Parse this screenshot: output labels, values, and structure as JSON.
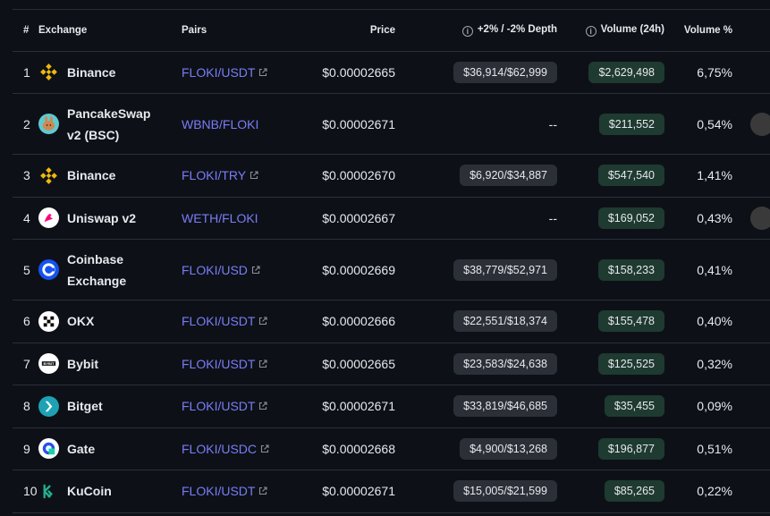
{
  "headers": {
    "num": "#",
    "exchange": "Exchange",
    "pairs": "Pairs",
    "price": "Price",
    "depth": "+2% / -2% Depth",
    "volume": "Volume (24h)",
    "volume_pct": "Volume %"
  },
  "rows": [
    {
      "num": "1",
      "exchange": "Binance",
      "pair": "FLOKI/USDT",
      "price": "$0.00002665",
      "depth": "$36,914/$62,999",
      "volume": "$2,629,498",
      "volume_pct": "6,75%",
      "logo": "binance-logo-icon"
    },
    {
      "num": "2",
      "exchange": "PancakeSwap v2 (BSC)",
      "pair": "WBNB/FLOKI",
      "price": "$0.00002671",
      "depth": "--",
      "volume": "$211,552",
      "volume_pct": "0,54%",
      "logo": "pancakeswap-logo-icon"
    },
    {
      "num": "3",
      "exchange": "Binance",
      "pair": "FLOKI/TRY",
      "price": "$0.00002670",
      "depth": "$6,920/$34,887",
      "volume": "$547,540",
      "volume_pct": "1,41%",
      "logo": "binance-logo-icon"
    },
    {
      "num": "4",
      "exchange": "Uniswap v2",
      "pair": "WETH/FLOKI",
      "price": "$0.00002667",
      "depth": "--",
      "volume": "$169,052",
      "volume_pct": "0,43%",
      "logo": "uniswap-logo-icon"
    },
    {
      "num": "5",
      "exchange": "Coinbase Exchange",
      "pair": "FLOKI/USD",
      "price": "$0.00002669",
      "depth": "$38,779/$52,971",
      "volume": "$158,233",
      "volume_pct": "0,41%",
      "logo": "coinbase-logo-icon"
    },
    {
      "num": "6",
      "exchange": "OKX",
      "pair": "FLOKI/USDT",
      "price": "$0.00002666",
      "depth": "$22,551/$18,374",
      "volume": "$155,478",
      "volume_pct": "0,40%",
      "logo": "okx-logo-icon"
    },
    {
      "num": "7",
      "exchange": "Bybit",
      "pair": "FLOKI/USDT",
      "price": "$0.00002665",
      "depth": "$23,583/$24,638",
      "volume": "$125,525",
      "volume_pct": "0,32%",
      "logo": "bybit-logo-icon"
    },
    {
      "num": "8",
      "exchange": "Bitget",
      "pair": "FLOKI/USDT",
      "price": "$0.00002671",
      "depth": "$33,819/$46,685",
      "volume": "$35,455",
      "volume_pct": "0,09%",
      "logo": "bitget-logo-icon"
    },
    {
      "num": "9",
      "exchange": "Gate",
      "pair": "FLOKI/USDC",
      "price": "$0.00002668",
      "depth": "$4,900/$13,268",
      "volume": "$196,877",
      "volume_pct": "0,51%",
      "logo": "gate-logo-icon"
    },
    {
      "num": "10",
      "exchange": "KuCoin",
      "pair": "FLOKI/USDT",
      "price": "$0.00002671",
      "depth": "$15,005/$21,599",
      "volume": "$85,265",
      "volume_pct": "0,22%",
      "logo": "kucoin-logo-icon"
    }
  ],
  "colors": {
    "background": "#0d1117",
    "pair_link": "#7a7cf7",
    "volume_pill": "#1f3a30",
    "depth_pill": "#2b2f38"
  }
}
